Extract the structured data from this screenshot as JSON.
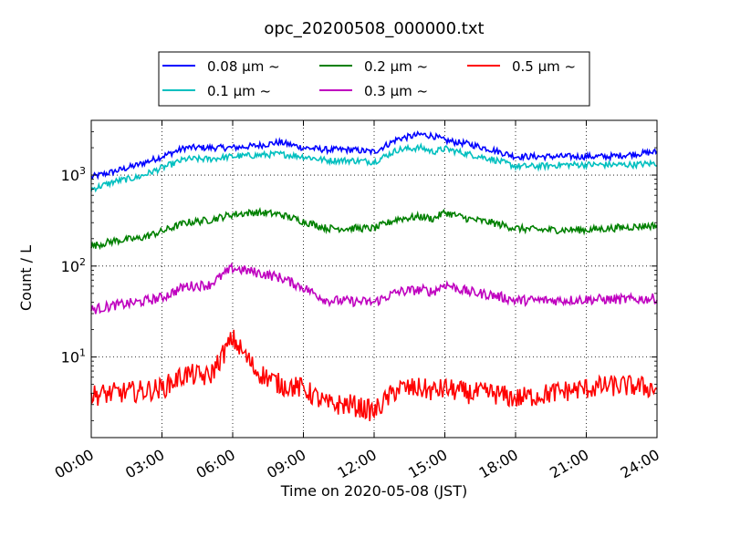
{
  "chart_data": {
    "type": "line",
    "title": "opc_20200508_000000.txt",
    "xlabel": "Time on 2020-05-08 (JST)",
    "ylabel": "Count / L",
    "yscale": "log",
    "xlim": [
      "00:00",
      "24:00"
    ],
    "ylim": [
      1.3,
      4000
    ],
    "grid": true,
    "legend_position": "top",
    "x_ticks": [
      "00:00",
      "03:00",
      "06:00",
      "09:00",
      "12:00",
      "15:00",
      "18:00",
      "21:00",
      "24:00"
    ],
    "y_ticks": [
      {
        "value": 10,
        "base": "10",
        "exp": "1"
      },
      {
        "value": 100,
        "base": "10",
        "exp": "2"
      },
      {
        "value": 1000,
        "base": "10",
        "exp": "3"
      }
    ],
    "x": [
      "00:00",
      "01:00",
      "02:00",
      "03:00",
      "04:00",
      "05:00",
      "06:00",
      "07:00",
      "08:00",
      "09:00",
      "10:00",
      "11:00",
      "12:00",
      "13:00",
      "14:00",
      "14:30",
      "15:00",
      "16:00",
      "17:00",
      "18:00",
      "19:00",
      "20:00",
      "21:00",
      "22:00",
      "23:00",
      "24:00"
    ],
    "series": [
      {
        "name": "0.08 μm  ~",
        "color": "#0000ff",
        "values": [
          950,
          1100,
          1300,
          1600,
          2000,
          2000,
          2000,
          2100,
          2300,
          2000,
          1900,
          1900,
          1800,
          2500,
          2800,
          2700,
          2400,
          2200,
          1900,
          1600,
          1600,
          1600,
          1600,
          1600,
          1700,
          1800
        ]
      },
      {
        "name": "0.1 μm  ~",
        "color": "#00bfbf",
        "values": [
          700,
          850,
          950,
          1200,
          1500,
          1500,
          1600,
          1650,
          1700,
          1600,
          1450,
          1450,
          1400,
          1900,
          2000,
          1800,
          1950,
          1700,
          1500,
          1250,
          1250,
          1300,
          1300,
          1300,
          1300,
          1350
        ]
      },
      {
        "name": "0.2 μm  ~",
        "color": "#008000",
        "values": [
          165,
          190,
          200,
          240,
          300,
          320,
          370,
          390,
          370,
          310,
          260,
          260,
          260,
          330,
          350,
          330,
          390,
          330,
          300,
          260,
          250,
          250,
          250,
          260,
          270,
          280
        ]
      },
      {
        "name": "0.3 μm  ~",
        "color": "#bf00bf",
        "values": [
          33,
          37,
          40,
          45,
          60,
          62,
          95,
          85,
          75,
          58,
          42,
          41,
          40,
          52,
          55,
          52,
          63,
          52,
          48,
          42,
          42,
          42,
          43,
          43,
          43,
          44
        ]
      },
      {
        "name": "0.5 μm  ~",
        "color": "#ff0000",
        "values": [
          3.8,
          4.0,
          4.2,
          4.5,
          6.5,
          6.0,
          16.0,
          7.0,
          5.0,
          4.5,
          3.0,
          3.0,
          2.5,
          4.5,
          4.5,
          4.2,
          4.5,
          4.0,
          4.0,
          3.5,
          3.8,
          4.2,
          4.5,
          4.8,
          4.8,
          4.5
        ]
      }
    ]
  }
}
